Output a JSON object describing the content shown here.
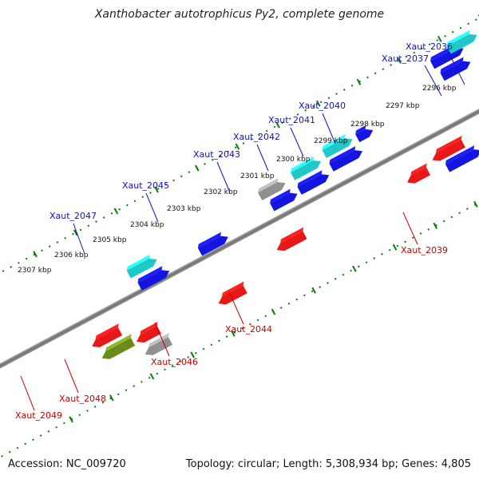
{
  "title": "Xanthobacter autotrophicus Py2, complete genome",
  "footer": {
    "accession": "Accession: NC_009720",
    "summary": "Topology: circular; Length: 5,308,934 bp; Genes: 4,805"
  },
  "colors": {
    "forward_label": "#1010c8",
    "reverse_label": "#c80000",
    "axis": "#808080",
    "ticks": "#0a7a0a"
  },
  "ruler_labels": [
    "2296 kbp",
    "2297 kbp",
    "2298 kbp",
    "2299 kbp",
    "2300 kbp",
    "2301 kbp",
    "2302 kbp",
    "2303 kbp",
    "2304 kbp",
    "2305 kbp",
    "2306 kbp",
    "2307 kbp"
  ],
  "gene_labels": {
    "forward": [
      "Xaut_2036",
      "Xaut_2037",
      "Xaut_2040",
      "Xaut_2041",
      "Xaut_2042",
      "Xaut_2043",
      "Xaut_2045",
      "Xaut_2047"
    ],
    "reverse": [
      "Xaut_2039",
      "Xaut_2044",
      "Xaut_2046",
      "Xaut_2048",
      "Xaut_2049"
    ]
  },
  "legend_colors": {
    "forward_gene": "#1515e0",
    "forward_feature": "#20c8c8",
    "reverse_gene": "#e81818",
    "reverse_feature": "#6a8a1a",
    "other": "#909090"
  }
}
